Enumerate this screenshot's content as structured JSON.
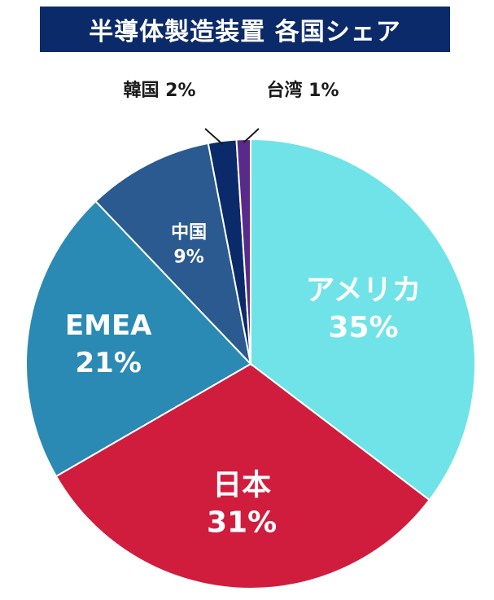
{
  "title": "半導体製造装置 各国シェア",
  "chart_data": {
    "type": "pie",
    "title": "半導体製造装置 各国シェア",
    "slices": [
      {
        "label": "アメリカ",
        "value": 35,
        "value_label": "35%",
        "color": "#6fe3e8"
      },
      {
        "label": "日本",
        "value": 31,
        "value_label": "31%",
        "color": "#d01d3d"
      },
      {
        "label": "EMEA",
        "value": 21,
        "value_label": "21%",
        "color": "#2a8ab3"
      },
      {
        "label": "中国",
        "value": 9,
        "value_label": "9%",
        "color": "#2a5a8f"
      },
      {
        "label": "韓国",
        "value": 2,
        "value_label": "2%",
        "color": "#0b2a6a"
      },
      {
        "label": "台湾",
        "value": 1,
        "value_label": "1%",
        "color": "#5a2a8a"
      }
    ]
  }
}
